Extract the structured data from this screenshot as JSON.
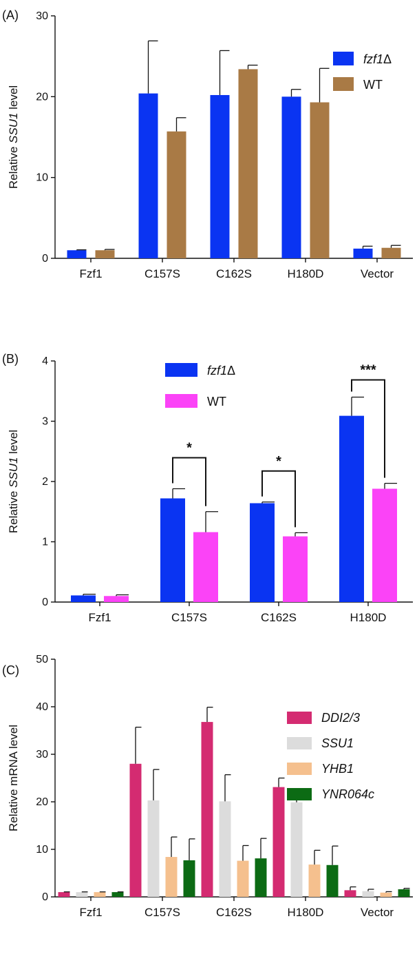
{
  "figure": {
    "colors": {
      "fzf1": "#0a34f2",
      "wt_a": "#a97a45",
      "wt_b": "#fb43f7",
      "ddi": "#d42b71",
      "ssu": "#dcdcdc",
      "yhb": "#f5c08e",
      "ynr": "#0c6b14"
    }
  },
  "chart_data": [
    {
      "panel_label": "(A)",
      "type": "bar",
      "ylabel_parts": [
        "Relative ",
        "SSU1",
        " level"
      ],
      "ylim": [
        0,
        30
      ],
      "yticks": [
        "0",
        "10",
        "20",
        "30"
      ],
      "categories": [
        "Fzf1",
        "C157S",
        "C162S",
        "H180D",
        "Vector"
      ],
      "series": [
        {
          "name_parts": [
            "fzf1",
            "Δ"
          ],
          "values": [
            1.0,
            20.4,
            20.2,
            20.0,
            1.2
          ],
          "errors": [
            0.05,
            6.5,
            5.5,
            0.9,
            0.3
          ]
        },
        {
          "name_parts": [
            "WT",
            ""
          ],
          "values": [
            1.0,
            15.7,
            23.4,
            19.3,
            1.3
          ],
          "errors": [
            0.1,
            1.7,
            0.5,
            4.2,
            0.3
          ]
        }
      ],
      "legend_position": "top-right",
      "grid": false
    },
    {
      "panel_label": "(B)",
      "type": "bar",
      "ylabel_parts": [
        "Relative ",
        "SSU1",
        " level"
      ],
      "ylim": [
        0,
        4
      ],
      "yticks": [
        "0",
        "1",
        "2",
        "3",
        "4"
      ],
      "categories": [
        "Fzf1",
        "C157S",
        "C162S",
        "H180D"
      ],
      "series": [
        {
          "name_parts": [
            "fzf1",
            "Δ"
          ],
          "values": [
            0.11,
            1.72,
            1.64,
            3.09
          ],
          "errors": [
            0.02,
            0.16,
            0.02,
            0.31
          ]
        },
        {
          "name_parts": [
            "WT",
            ""
          ],
          "values": [
            0.1,
            1.16,
            1.09,
            1.88
          ],
          "errors": [
            0.02,
            0.34,
            0.06,
            0.09
          ]
        }
      ],
      "significance": [
        {
          "category": "C157S",
          "label": "*"
        },
        {
          "category": "C162S",
          "label": "*"
        },
        {
          "category": "H180D",
          "label": "***"
        }
      ],
      "legend_position": "top-center",
      "grid": false
    },
    {
      "panel_label": "(C)",
      "type": "bar",
      "ylabel_parts": [
        "Relative mRNA level",
        "",
        ""
      ],
      "ylim": [
        0,
        50
      ],
      "yticks": [
        "0",
        "10",
        "20",
        "30",
        "40",
        "50"
      ],
      "categories": [
        "Fzf1",
        "C157S",
        "C162S",
        "H180D",
        "Vector"
      ],
      "series": [
        {
          "name_parts": [
            "DDI2/3",
            ""
          ],
          "values": [
            1.0,
            28.0,
            36.8,
            23.1,
            1.4
          ],
          "errors": [
            0.05,
            7.7,
            3.1,
            1.9,
            0.7
          ]
        },
        {
          "name_parts": [
            "SSU1",
            ""
          ],
          "values": [
            1.0,
            20.3,
            20.1,
            19.9,
            1.2
          ],
          "errors": [
            0.05,
            6.5,
            5.6,
            0.9,
            0.4
          ]
        },
        {
          "name_parts": [
            "YHB1",
            ""
          ],
          "values": [
            1.0,
            8.4,
            7.6,
            6.8,
            0.9
          ],
          "errors": [
            0.05,
            4.2,
            3.2,
            3.0,
            0.2
          ]
        },
        {
          "name_parts": [
            "YNR064c",
            ""
          ],
          "values": [
            1.0,
            7.7,
            8.1,
            6.7,
            1.6
          ],
          "errors": [
            0.05,
            4.5,
            4.2,
            4.0,
            0.2
          ]
        }
      ],
      "legend_position": "top-right",
      "grid": false
    }
  ]
}
